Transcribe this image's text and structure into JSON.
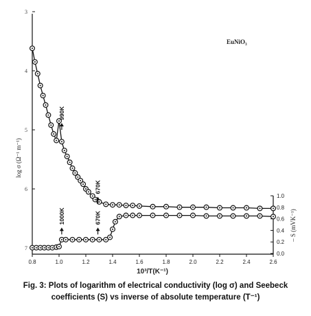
{
  "chart_data": {
    "type": "scatter",
    "inset_label": "EuNiO₃",
    "xlabel": "10³/T(K⁻¹)",
    "ylabel_left": "log σ (Ω⁻¹ m⁻¹)",
    "ylabel_right": "– S (mVK⁻¹)",
    "xlim": [
      0.8,
      2.6
    ],
    "xticks": [
      "0.8",
      "1.0",
      "1.2",
      "1.4",
      "1.6",
      "1.8",
      "2.0",
      "2.2",
      "2.4",
      "2.6"
    ],
    "ylim_left": [
      3,
      7.6
    ],
    "yticks_left": [
      "3",
      "4",
      "5",
      "6",
      "7"
    ],
    "ylim_right": [
      0.0,
      1.0
    ],
    "yticks_right": [
      "0.0",
      "0.2",
      "0.4",
      "0.6",
      "0.8",
      "1.0"
    ],
    "series": [
      {
        "axis": "left",
        "x": [
          0.8,
          0.82,
          0.84,
          0.86,
          0.88,
          0.9,
          0.92,
          0.94,
          0.96,
          0.98,
          1.0,
          1.02,
          1.04,
          1.06,
          1.08,
          1.1,
          1.12,
          1.14,
          1.16,
          1.18,
          1.2,
          1.22,
          1.25,
          1.27,
          1.3,
          1.35,
          1.4,
          1.45,
          1.5,
          1.55,
          1.6,
          1.7,
          1.8,
          1.9,
          2.0,
          2.1,
          2.2,
          2.3,
          2.4,
          2.5,
          2.6
        ],
        "y": [
          3.62,
          3.85,
          4.05,
          4.25,
          4.42,
          4.58,
          4.75,
          4.92,
          5.07,
          5.18,
          4.85,
          5.2,
          5.35,
          5.45,
          5.55,
          5.65,
          5.73,
          5.8,
          5.86,
          5.92,
          6.0,
          6.05,
          6.12,
          6.18,
          6.22,
          6.26,
          6.27,
          6.27,
          6.28,
          6.28,
          6.29,
          6.3,
          6.3,
          6.31,
          6.31,
          6.31,
          6.32,
          6.32,
          6.32,
          6.33,
          6.33
        ]
      },
      {
        "axis": "right",
        "x": [
          0.8,
          0.83,
          0.86,
          0.89,
          0.92,
          0.95,
          0.98,
          1.0,
          1.02,
          1.05,
          1.1,
          1.15,
          1.2,
          1.25,
          1.3,
          1.35,
          1.38,
          1.4,
          1.42,
          1.45,
          1.5,
          1.55,
          1.6,
          1.7,
          1.8,
          1.9,
          2.0,
          2.1,
          2.2,
          2.3,
          2.4,
          2.5,
          2.6
        ],
        "y": [
          0.1,
          0.1,
          0.1,
          0.1,
          0.1,
          0.1,
          0.11,
          0.12,
          0.24,
          0.24,
          0.24,
          0.24,
          0.24,
          0.24,
          0.24,
          0.24,
          0.28,
          0.42,
          0.55,
          0.64,
          0.66,
          0.66,
          0.66,
          0.66,
          0.66,
          0.66,
          0.66,
          0.65,
          0.65,
          0.65,
          0.65,
          0.65,
          0.64
        ]
      }
    ],
    "annotations": [
      {
        "text": "990K",
        "x": 1.02,
        "y_left": 5.0,
        "rotated": true
      },
      {
        "text": "670K",
        "x": 1.29,
        "y_left": 6.25,
        "rotated": true
      },
      {
        "text": "1000K",
        "x": 1.02,
        "y_right": 0.33,
        "rotated": true
      },
      {
        "text": "670K",
        "x": 1.29,
        "y_right": 0.33,
        "rotated": true
      }
    ]
  },
  "caption": "Fig. 3: Plots of logarithm of electrical conductivity (log σ) and Seebeck coefficients (S) vs inverse of absolute temperature (T⁻¹)"
}
